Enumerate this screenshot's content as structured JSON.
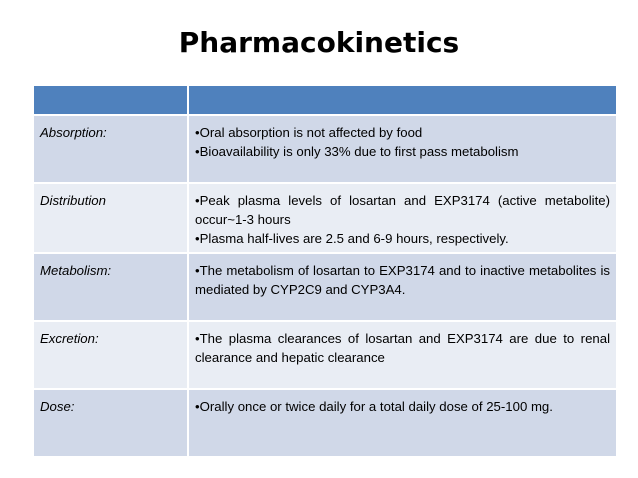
{
  "title": "Pharmacokinetics",
  "table": {
    "header": [
      "",
      ""
    ],
    "rows": [
      {
        "label": "Absorption:",
        "items": [
          "•Oral absorption is not affected by food",
          "•Bioavailability is only 33% due to first pass metabolism"
        ]
      },
      {
        "label": "Distribution",
        "items": [
          "•Peak plasma levels of losartan and EXP3174 (active metabolite) occur~1-3 hours",
          "•Plasma half-lives are 2.5 and 6-9 hours, respectively."
        ]
      },
      {
        "label": "Metabolism:",
        "items": [
          "•The metabolism of losartan to EXP3174 and to inactive metabolites is mediated by CYP2C9 and CYP3A4."
        ]
      },
      {
        "label": "Excretion:",
        "items": [
          "•The plasma clearances of losartan and EXP3174 are due to renal clearance and hepatic clearance"
        ]
      },
      {
        "label": "Dose:",
        "items": [
          "•Orally once or twice daily for a total daily dose of 25-100 mg."
        ]
      }
    ]
  },
  "colors": {
    "header": "#4f81bd",
    "row_dark": "#d0d8e8",
    "row_light": "#e9edf4"
  }
}
